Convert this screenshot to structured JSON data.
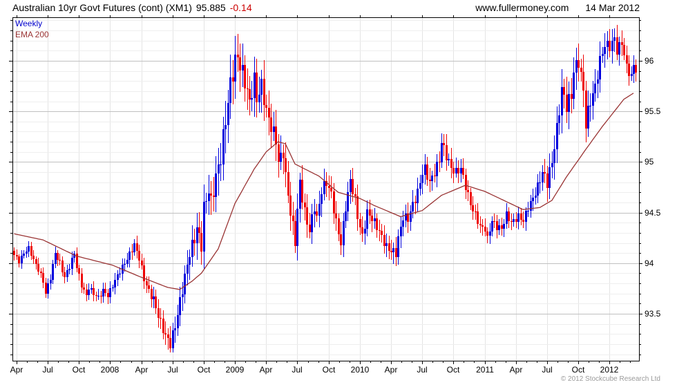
{
  "header": {
    "title": "Australian 10yr Govt Futures (cont) (XM1)",
    "last_price": "95.885",
    "change": "-0.14",
    "change_color": "#cc0000",
    "website": "www.fullermoney.com",
    "date": "14 Mar 2012"
  },
  "legend": {
    "series1_label": "Weekly",
    "series1_color": "#0000cc",
    "series2_label": "EMA 200",
    "series2_color": "#993333"
  },
  "footer": {
    "copyright": "© 2012 Stockcube Research Ltd"
  },
  "chart_data": {
    "type": "candlestick",
    "title": "Australian 10yr Govt Futures (cont) (XM1)",
    "frequency": "Weekly",
    "overlay": "EMA 200",
    "last_price": 95.885,
    "change": -0.14,
    "x_span": [
      "Apr 2007",
      "Mar 2012"
    ],
    "weeks_total": 260,
    "ylim": [
      93.04,
      96.43
    ],
    "y_major_ticks": [
      96,
      95.5,
      95,
      94.5,
      94,
      93.5
    ],
    "y_minor_step": 0.1,
    "grid": "on",
    "up_color": "#0000dd",
    "down_color": "#ee0000",
    "ema_color": "#993333",
    "grid_minor_color": "#eeeeee",
    "grid_major_color": "#c0c0c0",
    "grid_vert_color": "#e4e4e4",
    "x_ticks": [
      {
        "label": "Apr",
        "week": 1
      },
      {
        "label": "Jul",
        "week": 14
      },
      {
        "label": "Oct",
        "week": 27
      },
      {
        "label": "2008",
        "week": 40
      },
      {
        "label": "Apr",
        "week": 53
      },
      {
        "label": "Jul",
        "week": 66
      },
      {
        "label": "Oct",
        "week": 79
      },
      {
        "label": "2009",
        "week": 92
      },
      {
        "label": "Apr",
        "week": 105
      },
      {
        "label": "Jul",
        "week": 118
      },
      {
        "label": "Oct",
        "week": 131
      },
      {
        "label": "2010",
        "week": 144
      },
      {
        "label": "Apr",
        "week": 157
      },
      {
        "label": "Jul",
        "week": 170
      },
      {
        "label": "Oct",
        "week": 183
      },
      {
        "label": "2011",
        "week": 196
      },
      {
        "label": "Apr",
        "week": 209
      },
      {
        "label": "Jul",
        "week": 222
      },
      {
        "label": "Oct",
        "week": 235
      },
      {
        "label": "2012",
        "week": 248
      }
    ],
    "close_anchors": [
      [
        0,
        94.08
      ],
      [
        2,
        94.02
      ],
      [
        4,
        94.1
      ],
      [
        6,
        94.15
      ],
      [
        8,
        94.03
      ],
      [
        10,
        93.94
      ],
      [
        12,
        93.82
      ],
      [
        13,
        93.7
      ],
      [
        15,
        93.86
      ],
      [
        17,
        94.1
      ],
      [
        19,
        94.0
      ],
      [
        21,
        93.86
      ],
      [
        23,
        93.97
      ],
      [
        25,
        94.1
      ],
      [
        26,
        93.96
      ],
      [
        28,
        93.78
      ],
      [
        30,
        93.68
      ],
      [
        31,
        93.76
      ],
      [
        33,
        93.7
      ],
      [
        35,
        93.66
      ],
      [
        37,
        93.73
      ],
      [
        39,
        93.68
      ],
      [
        41,
        93.78
      ],
      [
        44,
        93.92
      ],
      [
        47,
        94.04
      ],
      [
        50,
        94.18
      ],
      [
        52,
        94.05
      ],
      [
        54,
        93.84
      ],
      [
        56,
        93.72
      ],
      [
        58,
        93.64
      ],
      [
        60,
        93.48
      ],
      [
        63,
        93.28
      ],
      [
        65,
        93.2
      ],
      [
        67,
        93.38
      ],
      [
        69,
        93.62
      ],
      [
        71,
        93.86
      ],
      [
        73,
        94.1
      ],
      [
        75,
        94.24
      ],
      [
        76,
        94.35
      ],
      [
        78,
        94.18
      ],
      [
        79,
        94.55
      ],
      [
        81,
        94.72
      ],
      [
        82,
        94.6
      ],
      [
        84,
        94.85
      ],
      [
        86,
        95.05
      ],
      [
        88,
        95.42
      ],
      [
        90,
        95.77
      ],
      [
        92,
        96.0
      ],
      [
        93,
        96.04
      ],
      [
        95,
        95.88
      ],
      [
        97,
        95.7
      ],
      [
        98,
        95.58
      ],
      [
        100,
        95.82
      ],
      [
        101,
        95.62
      ],
      [
        103,
        95.76
      ],
      [
        105,
        95.5
      ],
      [
        107,
        95.35
      ],
      [
        109,
        95.22
      ],
      [
        110,
        95.0
      ],
      [
        112,
        95.1
      ],
      [
        113,
        94.85
      ],
      [
        115,
        94.5
      ],
      [
        117,
        94.22
      ],
      [
        118,
        94.52
      ],
      [
        119,
        94.8
      ],
      [
        121,
        94.5
      ],
      [
        123,
        94.32
      ],
      [
        125,
        94.56
      ],
      [
        126,
        94.44
      ],
      [
        128,
        94.72
      ],
      [
        130,
        94.8
      ],
      [
        132,
        94.68
      ],
      [
        134,
        94.4
      ],
      [
        136,
        94.2
      ],
      [
        138,
        94.55
      ],
      [
        140,
        94.82
      ],
      [
        142,
        94.62
      ],
      [
        143,
        94.46
      ],
      [
        145,
        94.26
      ],
      [
        147,
        94.5
      ],
      [
        149,
        94.44
      ],
      [
        151,
        94.36
      ],
      [
        153,
        94.26
      ],
      [
        155,
        94.16
      ],
      [
        157,
        94.12
      ],
      [
        159,
        94.1
      ],
      [
        160,
        94.24
      ],
      [
        162,
        94.46
      ],
      [
        164,
        94.44
      ],
      [
        166,
        94.58
      ],
      [
        168,
        94.7
      ],
      [
        170,
        94.9
      ],
      [
        171,
        94.93
      ],
      [
        173,
        94.8
      ],
      [
        175,
        94.9
      ],
      [
        177,
        95.02
      ],
      [
        178,
        95.2
      ],
      [
        180,
        95.06
      ],
      [
        182,
        94.94
      ],
      [
        184,
        94.9
      ],
      [
        186,
        94.94
      ],
      [
        188,
        94.76
      ],
      [
        190,
        94.58
      ],
      [
        192,
        94.48
      ],
      [
        194,
        94.36
      ],
      [
        196,
        94.34
      ],
      [
        197,
        94.24
      ],
      [
        199,
        94.42
      ],
      [
        201,
        94.36
      ],
      [
        203,
        94.34
      ],
      [
        205,
        94.48
      ],
      [
        207,
        94.4
      ],
      [
        210,
        94.46
      ],
      [
        212,
        94.42
      ],
      [
        214,
        94.55
      ],
      [
        216,
        94.64
      ],
      [
        218,
        94.76
      ],
      [
        220,
        94.9
      ],
      [
        222,
        94.8
      ],
      [
        224,
        95.0
      ],
      [
        226,
        95.32
      ],
      [
        228,
        95.72
      ],
      [
        230,
        95.56
      ],
      [
        232,
        95.66
      ],
      [
        233,
        95.9
      ],
      [
        235,
        96.0
      ],
      [
        237,
        95.7
      ],
      [
        238,
        95.38
      ],
      [
        240,
        95.6
      ],
      [
        242,
        95.74
      ],
      [
        244,
        96.0
      ],
      [
        246,
        96.16
      ],
      [
        248,
        96.14
      ],
      [
        250,
        96.22
      ],
      [
        251,
        96.1
      ],
      [
        253,
        96.18
      ],
      [
        255,
        95.94
      ],
      [
        257,
        95.84
      ],
      [
        258,
        95.96
      ],
      [
        259,
        95.885
      ]
    ],
    "ema_anchors": [
      [
        0,
        94.29
      ],
      [
        12,
        94.23
      ],
      [
        26,
        94.07
      ],
      [
        41,
        93.98
      ],
      [
        52,
        93.87
      ],
      [
        64,
        93.76
      ],
      [
        69,
        93.74
      ],
      [
        74,
        93.82
      ],
      [
        78,
        93.9
      ],
      [
        85,
        94.14
      ],
      [
        92,
        94.59
      ],
      [
        100,
        94.93
      ],
      [
        105,
        95.1
      ],
      [
        110,
        95.2
      ],
      [
        113,
        95.18
      ],
      [
        117,
        94.98
      ],
      [
        127,
        94.86
      ],
      [
        135,
        94.7
      ],
      [
        144,
        94.64
      ],
      [
        150,
        94.57
      ],
      [
        161,
        94.46
      ],
      [
        170,
        94.52
      ],
      [
        178,
        94.67
      ],
      [
        188,
        94.77
      ],
      [
        196,
        94.71
      ],
      [
        204,
        94.62
      ],
      [
        212,
        94.53
      ],
      [
        219,
        94.55
      ],
      [
        224,
        94.62
      ],
      [
        230,
        94.85
      ],
      [
        238,
        95.12
      ],
      [
        245,
        95.35
      ],
      [
        250,
        95.5
      ],
      [
        254,
        95.62
      ],
      [
        258,
        95.68
      ]
    ],
    "volatility_anchors": [
      [
        0,
        0.1
      ],
      [
        20,
        0.12
      ],
      [
        40,
        0.13
      ],
      [
        55,
        0.16
      ],
      [
        62,
        0.22
      ],
      [
        70,
        0.26
      ],
      [
        80,
        0.34
      ],
      [
        88,
        0.46
      ],
      [
        94,
        0.42
      ],
      [
        100,
        0.36
      ],
      [
        108,
        0.34
      ],
      [
        116,
        0.3
      ],
      [
        124,
        0.26
      ],
      [
        132,
        0.24
      ],
      [
        142,
        0.22
      ],
      [
        152,
        0.2
      ],
      [
        160,
        0.22
      ],
      [
        170,
        0.22
      ],
      [
        180,
        0.22
      ],
      [
        190,
        0.18
      ],
      [
        200,
        0.16
      ],
      [
        210,
        0.15
      ],
      [
        218,
        0.2
      ],
      [
        226,
        0.34
      ],
      [
        232,
        0.34
      ],
      [
        238,
        0.32
      ],
      [
        244,
        0.28
      ],
      [
        250,
        0.24
      ],
      [
        256,
        0.2
      ],
      [
        259,
        0.18
      ]
    ]
  }
}
